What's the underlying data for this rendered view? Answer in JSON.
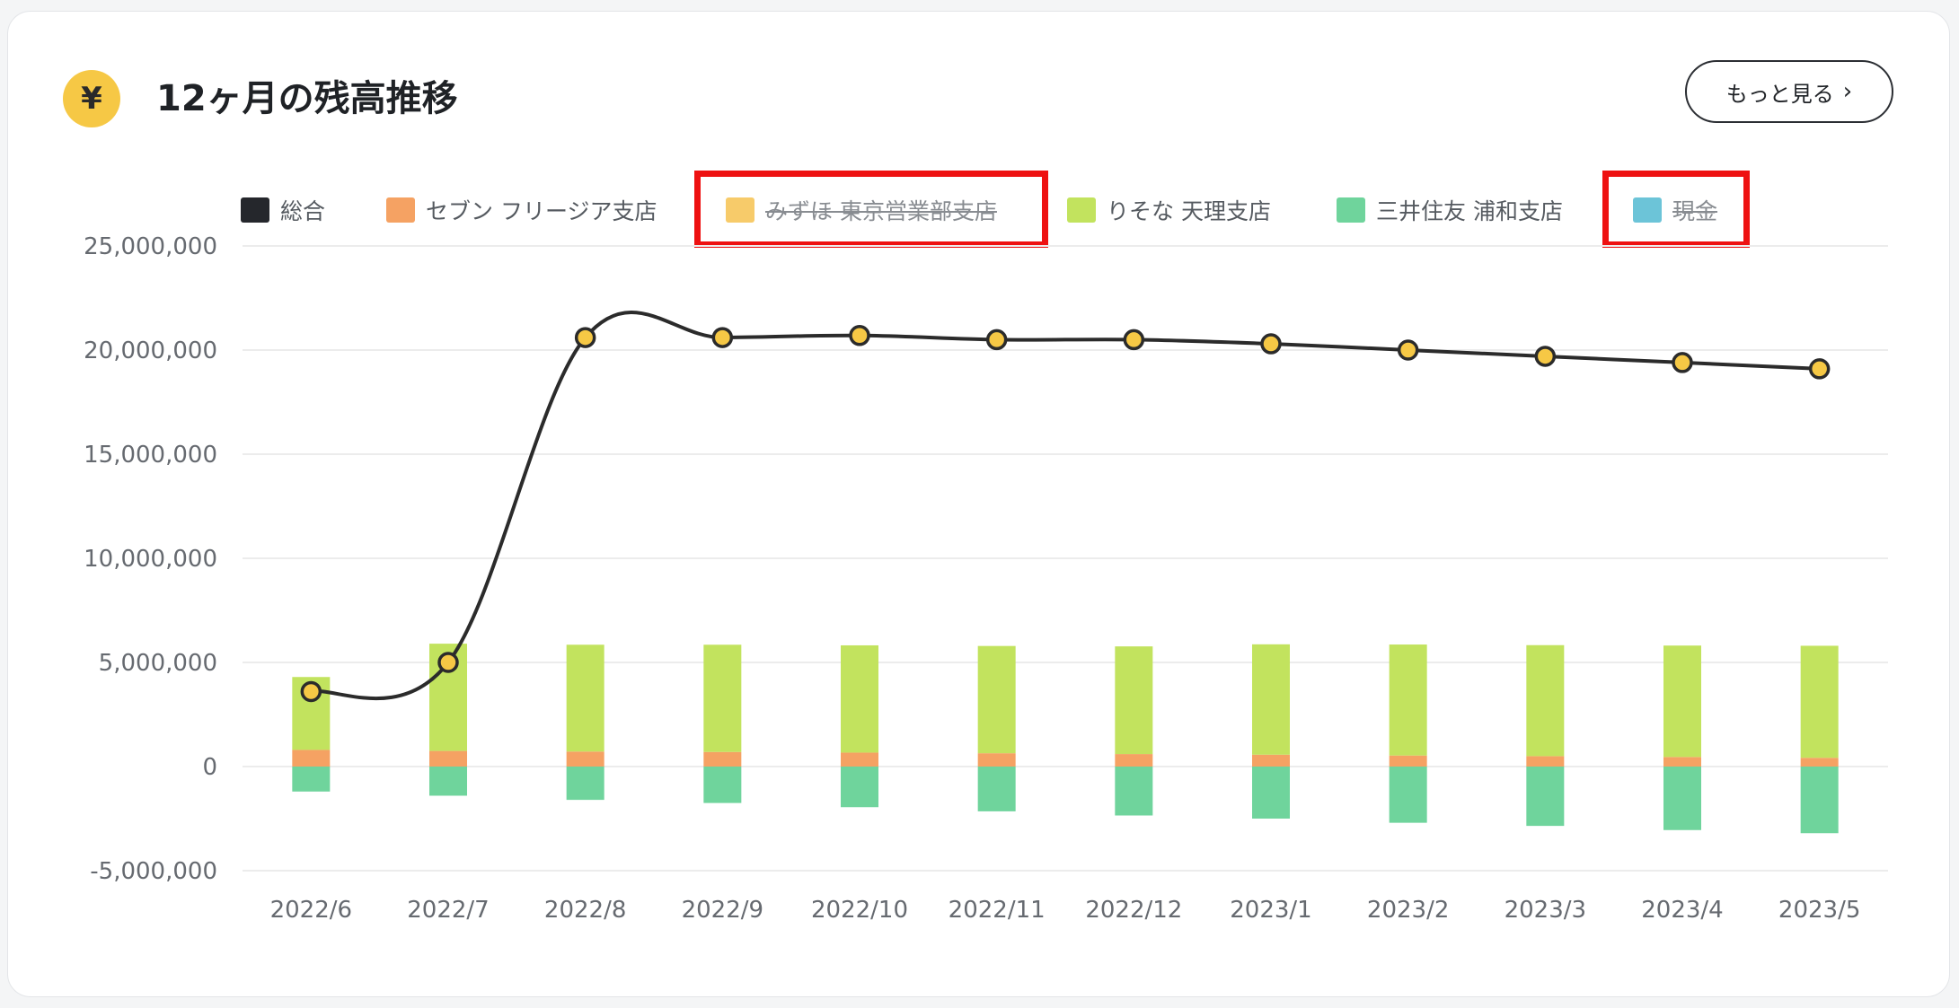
{
  "header": {
    "icon": "yen-icon",
    "title": "12ヶ月の残高推移",
    "more_label": "もっと見る"
  },
  "legend": [
    {
      "label": "総合",
      "color": "#25272c",
      "hidden": false
    },
    {
      "label": "セブン フリージア支店",
      "color": "#f5a263",
      "hidden": false
    },
    {
      "label": "みずほ 東京営業部支店",
      "color": "#f7cb6a",
      "hidden": true
    },
    {
      "label": "りそな 天理支店",
      "color": "#c2e35e",
      "hidden": false
    },
    {
      "label": "三井住友 浦和支店",
      "color": "#6fd49c",
      "hidden": false
    },
    {
      "label": "現金",
      "color": "#6cc4d8",
      "hidden": true
    }
  ],
  "colors": {
    "total_line": "#2b2b2b",
    "point_fill": "#f6c845",
    "highlight": "#ee1111"
  },
  "chart_data": {
    "type": "bar",
    "categories": [
      "2022/6",
      "2022/7",
      "2022/8",
      "2022/9",
      "2022/10",
      "2022/11",
      "2022/12",
      "2023/1",
      "2023/2",
      "2023/3",
      "2023/4",
      "2023/5"
    ],
    "ylim": [
      -5000000,
      25000000
    ],
    "yticks": [
      25000000,
      20000000,
      15000000,
      10000000,
      5000000,
      0,
      -5000000
    ],
    "ytick_labels": [
      "25,000,000",
      "20,000,000",
      "15,000,000",
      "10,000,000",
      "5,000,000",
      "0",
      "-5,000,000"
    ],
    "grid": true,
    "legend_position": "top",
    "series": [
      {
        "name": "セブン フリージア支店",
        "type": "bar",
        "stack": "pos",
        "values": [
          800000,
          750000,
          720000,
          700000,
          670000,
          640000,
          600000,
          570000,
          530000,
          500000,
          460000,
          420000
        ]
      },
      {
        "name": "りそな 天理支店",
        "type": "bar",
        "stack": "pos",
        "values": [
          3500000,
          5150000,
          5130000,
          5150000,
          5150000,
          5150000,
          5170000,
          5300000,
          5330000,
          5330000,
          5350000,
          5380000
        ]
      },
      {
        "name": "三井住友 浦和支店",
        "type": "bar",
        "stack": "neg",
        "values": [
          -1200000,
          -1400000,
          -1600000,
          -1750000,
          -1950000,
          -2150000,
          -2350000,
          -2500000,
          -2700000,
          -2850000,
          -3050000,
          -3200000
        ]
      },
      {
        "name": "総合",
        "type": "line",
        "values": [
          3600000,
          5000000,
          20600000,
          20600000,
          20700000,
          20500000,
          20500000,
          20300000,
          20000000,
          19700000,
          19400000,
          19100000
        ]
      }
    ]
  }
}
